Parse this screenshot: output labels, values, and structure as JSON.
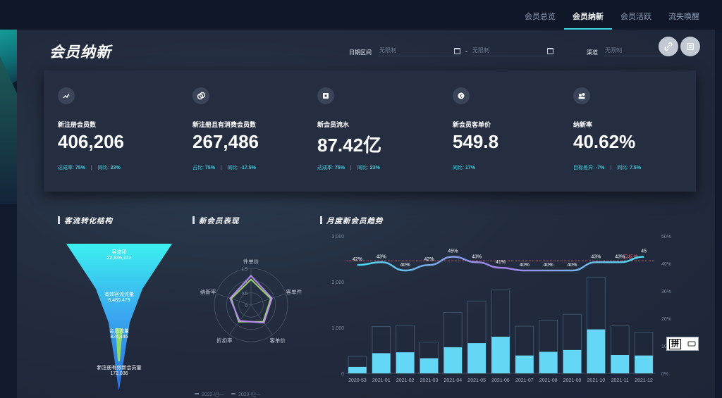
{
  "nav": {
    "tabs": [
      {
        "label": "会员总览",
        "active": false
      },
      {
        "label": "会员纳新",
        "active": true
      },
      {
        "label": "会员活跃",
        "active": false
      },
      {
        "label": "流失唤醒",
        "active": false
      }
    ]
  },
  "page": {
    "title": "会员纳新"
  },
  "filters": {
    "date_label": "日期区间",
    "date_start_placeholder": "无限制",
    "date_separator": "-",
    "date_end_placeholder": "无限制",
    "channel_label": "渠道",
    "channel_placeholder": "无限制"
  },
  "toolbar": {
    "icons": [
      "link-icon",
      "export-icon"
    ]
  },
  "kpis": [
    {
      "icon": "trend-icon",
      "label": "新注册会员数",
      "value": "406,206",
      "sub1_label": "达成率:",
      "sub1_value": "75%",
      "sep": "|",
      "sub2_label": "同比:",
      "sub2_value": "23%"
    },
    {
      "icon": "coins-icon",
      "label": "新注册且有消费会员数",
      "value": "267,486",
      "sub1_label": "占比:",
      "sub1_value": "75%",
      "sep": "|",
      "sub2_label": "同比:",
      "sub2_value": "-17.5%"
    },
    {
      "icon": "wallet-icon",
      "label": "新会员流水",
      "value": "87.42亿",
      "sub1_label": "达成率:",
      "sub1_value": "75%",
      "sep": "|",
      "sub2_label": "同比:",
      "sub2_value": "23%"
    },
    {
      "icon": "coin-icon",
      "label": "新会员客单价",
      "value": "549.8",
      "sub1_label": "同比:",
      "sub1_value": "17%",
      "sep": "",
      "sub2_label": "",
      "sub2_value": ""
    },
    {
      "icon": "users-icon",
      "label": "纳新率",
      "value": "40.62%",
      "sub1_label": "目标差异:",
      "sub1_value": "-7%",
      "sep": "|",
      "sub2_label": "同比:",
      "sub2_value": "7.5%"
    }
  ],
  "sections": {
    "funnel_title": "客流转化结构",
    "radar_title": "新会员表现",
    "trend_title": "月度新会员趋势"
  },
  "chart_data": [
    {
      "type": "funnel",
      "title": "客流转化结构",
      "stages": [
        {
          "name": "客流印",
          "value": "22,936,142"
        },
        {
          "name": "有效客流流量",
          "value": "6,480,479"
        },
        {
          "name": "会员流量",
          "value": "824,446"
        },
        {
          "name": "新注册有效新会员量",
          "value": "172,036"
        }
      ]
    },
    {
      "type": "radar",
      "title": "新会员表现",
      "indicators": [
        "件单价",
        "客单件",
        "客单价",
        "折扣率",
        "纳新率"
      ],
      "scale_labels": [
        "0",
        "0.5",
        "1",
        "1.5"
      ],
      "series": [
        {
          "name": "2022-归一",
          "values": [
            1.2,
            0.9,
            0.9,
            0.8,
            0.9
          ]
        },
        {
          "name": "2023-归一",
          "values": [
            1.05,
            0.85,
            0.85,
            0.85,
            0.85
          ]
        }
      ],
      "legend": [
        "2022-归一",
        "2023-归一"
      ]
    },
    {
      "type": "bar",
      "title": "月度新会员趋势",
      "categories": [
        "2020-53",
        "2021-01",
        "2021-02",
        "2021-03",
        "2021-04",
        "2021-05",
        "2021-06",
        "2021-07",
        "2021-08",
        "2021-09",
        "2021-10",
        "2021-11",
        "2021-12"
      ],
      "y_left_ticks": [
        "0",
        "1,000",
        "2,000",
        "3,000"
      ],
      "y_right_ticks": [
        "0%",
        "10%",
        "20%",
        "30%",
        "40%",
        "50%"
      ],
      "ylim_left": [
        0,
        3000
      ],
      "ylim_right": [
        0,
        50
      ],
      "series": [
        {
          "values": [
            370,
            1020,
            1050,
            680,
            1330,
            1580,
            1820,
            1030,
            1160,
            1290,
            2100,
            1040,
            900
          ]
        },
        {
          "values": [
            140,
            440,
            460,
            330,
            570,
            660,
            800,
            390,
            470,
            510,
            960,
            400,
            390
          ]
        },
        {
          "values": [
            42,
            43,
            40,
            42,
            45,
            43,
            41,
            40,
            40,
            40,
            43,
            43,
            45
          ]
        }
      ],
      "line_labels": [
        "42%",
        "43%",
        "40%",
        "42%",
        "45%",
        "43%",
        "41%",
        "40%",
        "40%",
        "40%",
        "43%",
        "43%",
        "45"
      ],
      "target_value": 42,
      "target_label": "目标值"
    }
  ],
  "ime": {
    "label": "拼"
  }
}
